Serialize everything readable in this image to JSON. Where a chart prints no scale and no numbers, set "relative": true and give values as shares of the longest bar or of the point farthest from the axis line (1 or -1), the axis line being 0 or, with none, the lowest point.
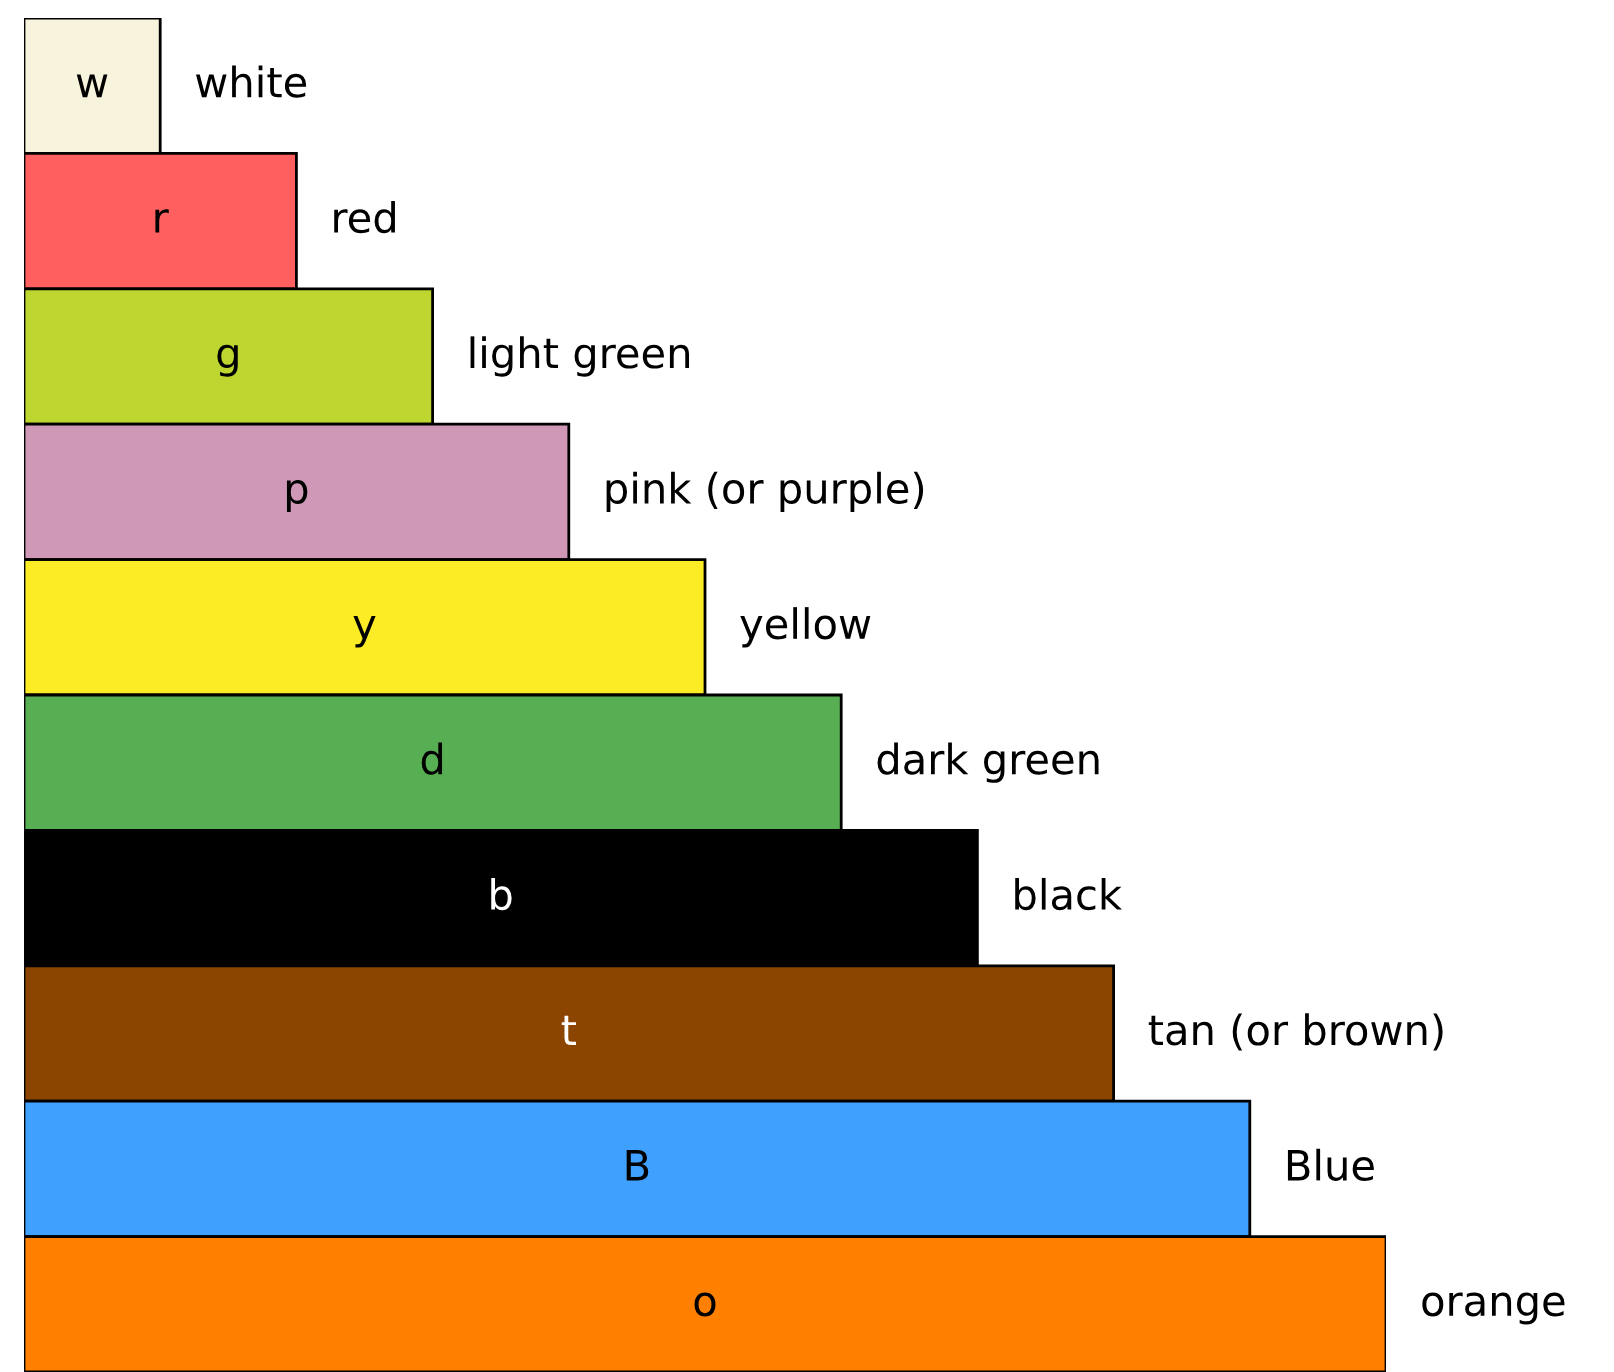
{
  "chart_data": {
    "type": "bar",
    "orientation": "horizontal",
    "relative": true,
    "categories": [
      "white",
      "red",
      "light green",
      "pink (or purple)",
      "yellow",
      "dark green",
      "black",
      "tan (or brown)",
      "Blue",
      "orange"
    ],
    "values": [
      0.1,
      0.2,
      0.3,
      0.4,
      0.5,
      0.6,
      0.7,
      0.8,
      0.9,
      1.0
    ],
    "annotations": [
      "w",
      "r",
      "g",
      "p",
      "y",
      "d",
      "b",
      "t",
      "B",
      "o"
    ],
    "colors": [
      "#f7f3dc",
      "#ff5f5f",
      "#bed62f",
      "#cf98b6",
      "#fbec26",
      "#58ae52",
      "#000000",
      "#8b4500",
      "#3fa0fe",
      "#ff8000"
    ]
  }
}
